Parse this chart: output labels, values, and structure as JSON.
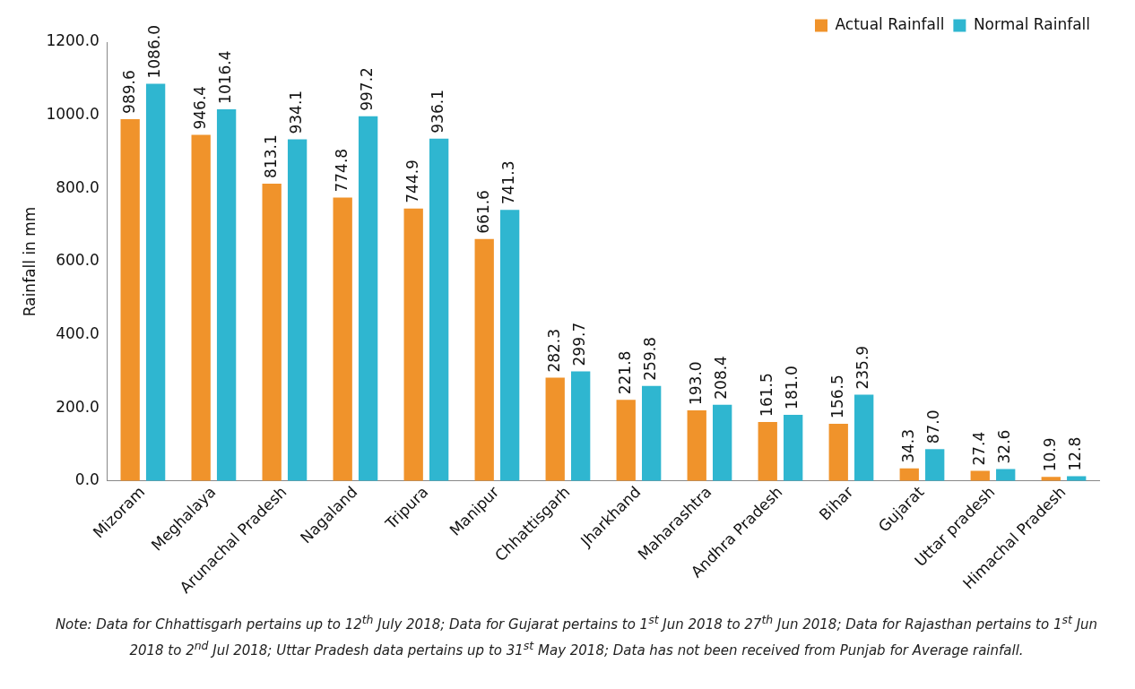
{
  "chart_data": {
    "type": "bar",
    "ylabel": "Rainfall in mm",
    "categories": [
      "Mizoram",
      "Meghalaya",
      "Arunachal Pradesh",
      "Nagaland",
      "Tripura",
      "Manipur",
      "Chhattisgarh",
      "Jharkhand",
      "Maharashtra",
      "Andhra Pradesh",
      "Bihar",
      "Gujarat",
      "Uttar pradesh",
      "Himachal Pradesh"
    ],
    "series": [
      {
        "name": "Actual Rainfall",
        "color": "#f0932b",
        "values": [
          989.6,
          946.4,
          813.1,
          774.8,
          744.9,
          661.6,
          282.3,
          221.8,
          193.0,
          161.5,
          156.5,
          34.3,
          27.4,
          10.9
        ],
        "value_labels": [
          "989.6",
          "946.4",
          "813.1",
          "774.8",
          "744.9",
          "661.6",
          "282.3",
          "221.8",
          "193.0",
          "161.5",
          "156.5",
          "34.3",
          "27.4",
          "10.9"
        ]
      },
      {
        "name": "Normal Rainfall",
        "color": "#2fb6d0",
        "values": [
          1086.0,
          1016.4,
          934.1,
          997.2,
          936.1,
          741.3,
          299.7,
          259.8,
          208.4,
          181.0,
          235.9,
          87.0,
          32.6,
          12.8
        ],
        "value_labels": [
          "1086.0",
          "1016.4",
          "934.1",
          "997.2",
          "936.1",
          "741.3",
          "299.7",
          "259.8",
          "208.4",
          "181.0",
          "235.9",
          "87.0",
          "32.6",
          "12.8"
        ]
      }
    ],
    "ylim": [
      0,
      1200
    ],
    "yticks": [
      {
        "value": 0,
        "label": "0.0"
      },
      {
        "value": 200,
        "label": "200.0"
      },
      {
        "value": 400,
        "label": "400.0"
      },
      {
        "value": 600,
        "label": "600.0"
      },
      {
        "value": 800,
        "label": "800.0"
      },
      {
        "value": 1000,
        "label": "1000.0"
      },
      {
        "value": 1200,
        "label": "1200.0"
      }
    ],
    "grid": false,
    "legend": "top right",
    "annotations": [
      "Note: Data for Chhattisgarh pertains up to 12$^{th}$ July 2018; Data for Gujarat pertains to 1$^{st}$ Jun 2018 to 27$^{th}$ Jun 2018; Data for Rajasthan pertains to 1$^{st}$ Jun 2018 to 2$^{nd}$ Jul 2018; Uttar Pradesh data pertains up to 31$^{st}$ May 2018; Data has not been received from Punjab for Average rainfall."
    ]
  }
}
